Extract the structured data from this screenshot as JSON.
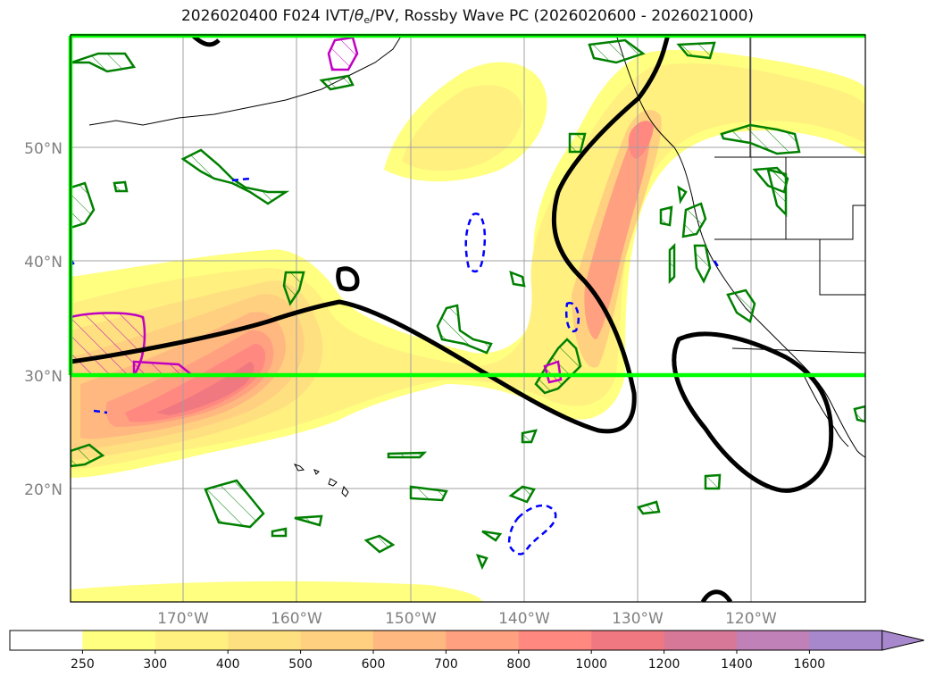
{
  "title": {
    "prefix": "2026020400 F024 IVT/",
    "theta": "θ",
    "theta_sub": "e",
    "suffix": "/PV, Rossby Wave PC (2026020600 - 2026021000)"
  },
  "map": {
    "lat_labels": [
      "50°N",
      "40°N",
      "30°N",
      "20°N"
    ],
    "lon_labels": [
      "170°W",
      "160°W",
      "150°W",
      "140°W",
      "130°W",
      "120°W"
    ],
    "colors": {
      "frame": "#000000",
      "box": "#00ff00",
      "pv_positive": "#008000",
      "pv_negative": "#0000ff",
      "wave_contour": "#000000",
      "magenta": "#c000c0"
    }
  },
  "colorbar": {
    "ticks": [
      "250",
      "300",
      "400",
      "500",
      "600",
      "700",
      "800",
      "1000",
      "1200",
      "1400",
      "1600"
    ],
    "colors": [
      "#ffffff",
      "#ffff80",
      "#fff080",
      "#ffe080",
      "#ffd080",
      "#ffb880",
      "#ffa080",
      "#ff8880",
      "#f07880",
      "#d87898",
      "#c080b8",
      "#a888cc"
    ]
  }
}
